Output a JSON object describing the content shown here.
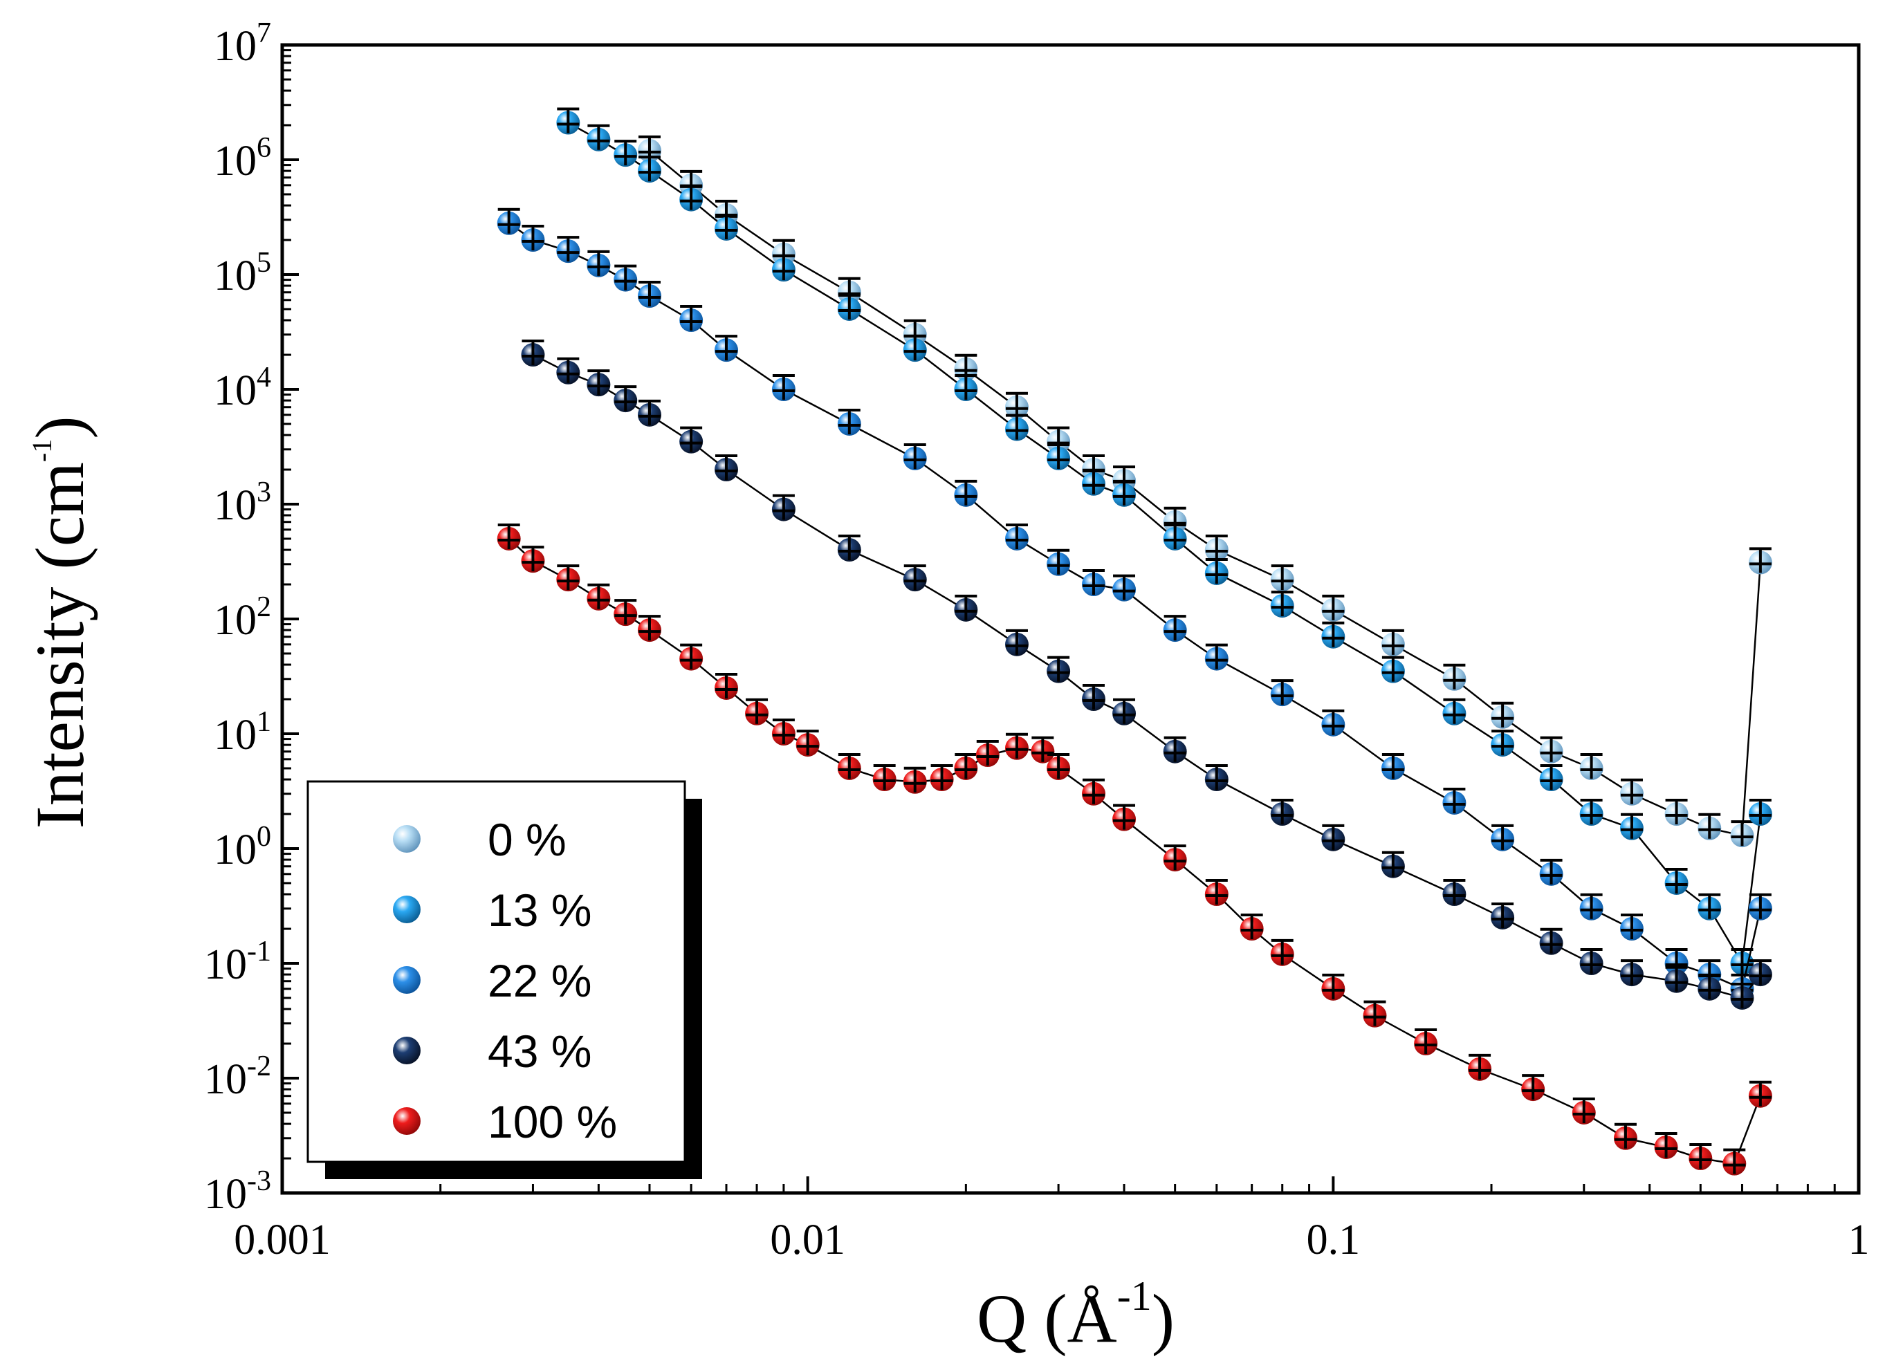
{
  "chart_data": {
    "type": "scatter",
    "xscale": "log",
    "yscale": "log",
    "xlim": [
      0.001,
      1
    ],
    "ylim": [
      0.001,
      10000000
    ],
    "x_ticks": [
      {
        "value": 0.001,
        "label": "0.001"
      },
      {
        "value": 0.01,
        "label": "0.01"
      },
      {
        "value": 0.1,
        "label": "0.1"
      },
      {
        "value": 1,
        "label": "1"
      }
    ],
    "y_ticks": [
      {
        "value": 0.001,
        "base": "10",
        "exp": "-3"
      },
      {
        "value": 0.01,
        "base": "10",
        "exp": "-2"
      },
      {
        "value": 0.1,
        "base": "10",
        "exp": "-1"
      },
      {
        "value": 1,
        "base": "10",
        "exp": "0"
      },
      {
        "value": 10,
        "base": "10",
        "exp": "1"
      },
      {
        "value": 100,
        "base": "10",
        "exp": "2"
      },
      {
        "value": 1000,
        "base": "10",
        "exp": "3"
      },
      {
        "value": 10000,
        "base": "10",
        "exp": "4"
      },
      {
        "value": 100000,
        "base": "10",
        "exp": "5"
      },
      {
        "value": 1000000,
        "base": "10",
        "exp": "6"
      },
      {
        "value": 10000000,
        "base": "10",
        "exp": "7"
      }
    ],
    "xlabel": {
      "main": "Q (Å",
      "exp": "-1",
      "close": ")"
    },
    "ylabel": {
      "main": "Intensity (cm",
      "exp": "-1",
      "close": ")"
    },
    "legend_position": "bottom-left",
    "series": [
      {
        "name": "0 %",
        "color": "#b8def5",
        "dark": "#5a8fb8",
        "points": [
          [
            0.005,
            1200000
          ],
          [
            0.006,
            600000
          ],
          [
            0.007,
            330000
          ],
          [
            0.009,
            150000
          ],
          [
            0.012,
            70000
          ],
          [
            0.016,
            30000
          ],
          [
            0.02,
            15000
          ],
          [
            0.025,
            7000
          ],
          [
            0.03,
            3500
          ],
          [
            0.035,
            2000
          ],
          [
            0.04,
            1600
          ],
          [
            0.05,
            700
          ],
          [
            0.06,
            400
          ],
          [
            0.08,
            220
          ],
          [
            0.1,
            120
          ],
          [
            0.13,
            60
          ],
          [
            0.17,
            30
          ],
          [
            0.21,
            14
          ],
          [
            0.26,
            7
          ],
          [
            0.31,
            5
          ],
          [
            0.37,
            3
          ],
          [
            0.45,
            2
          ],
          [
            0.52,
            1.5
          ],
          [
            0.6,
            1.3
          ],
          [
            0.65,
            310
          ]
        ]
      },
      {
        "name": "13 %",
        "color": "#2aa8f2",
        "dark": "#08588c",
        "points": [
          [
            0.0035,
            2100000
          ],
          [
            0.004,
            1500000
          ],
          [
            0.0045,
            1100000
          ],
          [
            0.005,
            800000
          ],
          [
            0.006,
            450000
          ],
          [
            0.007,
            250000
          ],
          [
            0.009,
            110000
          ],
          [
            0.012,
            50000
          ],
          [
            0.016,
            22000
          ],
          [
            0.02,
            10000
          ],
          [
            0.025,
            4500
          ],
          [
            0.03,
            2500
          ],
          [
            0.035,
            1500
          ],
          [
            0.04,
            1200
          ],
          [
            0.05,
            500
          ],
          [
            0.06,
            250
          ],
          [
            0.08,
            130
          ],
          [
            0.1,
            70
          ],
          [
            0.13,
            35
          ],
          [
            0.17,
            15
          ],
          [
            0.21,
            8
          ],
          [
            0.26,
            4
          ],
          [
            0.31,
            2
          ],
          [
            0.37,
            1.5
          ],
          [
            0.45,
            0.5
          ],
          [
            0.52,
            0.3
          ],
          [
            0.6,
            0.1
          ],
          [
            0.65,
            2
          ]
        ]
      },
      {
        "name": "22 %",
        "color": "#2c8fe8",
        "dark": "#0a4f94",
        "points": [
          [
            0.0027,
            280000
          ],
          [
            0.003,
            200000
          ],
          [
            0.0035,
            160000
          ],
          [
            0.004,
            120000
          ],
          [
            0.0045,
            90000
          ],
          [
            0.005,
            65000
          ],
          [
            0.006,
            40000
          ],
          [
            0.007,
            22000
          ],
          [
            0.009,
            10000
          ],
          [
            0.012,
            5000
          ],
          [
            0.016,
            2500
          ],
          [
            0.02,
            1200
          ],
          [
            0.025,
            500
          ],
          [
            0.03,
            300
          ],
          [
            0.035,
            200
          ],
          [
            0.04,
            180
          ],
          [
            0.05,
            80
          ],
          [
            0.06,
            45
          ],
          [
            0.08,
            22
          ],
          [
            0.1,
            12
          ],
          [
            0.13,
            5
          ],
          [
            0.17,
            2.5
          ],
          [
            0.21,
            1.2
          ],
          [
            0.26,
            0.6
          ],
          [
            0.31,
            0.3
          ],
          [
            0.37,
            0.2
          ],
          [
            0.45,
            0.1
          ],
          [
            0.52,
            0.08
          ],
          [
            0.6,
            0.06
          ],
          [
            0.65,
            0.3
          ]
        ]
      },
      {
        "name": "43 %",
        "color": "#1d3e73",
        "dark": "#060f22",
        "points": [
          [
            0.003,
            20000
          ],
          [
            0.0035,
            14000
          ],
          [
            0.004,
            11000
          ],
          [
            0.0045,
            8000
          ],
          [
            0.005,
            6000
          ],
          [
            0.006,
            3500
          ],
          [
            0.007,
            2000
          ],
          [
            0.009,
            900
          ],
          [
            0.012,
            400
          ],
          [
            0.016,
            220
          ],
          [
            0.02,
            120
          ],
          [
            0.025,
            60
          ],
          [
            0.03,
            35
          ],
          [
            0.035,
            20
          ],
          [
            0.04,
            15
          ],
          [
            0.05,
            7
          ],
          [
            0.06,
            4
          ],
          [
            0.08,
            2
          ],
          [
            0.1,
            1.2
          ],
          [
            0.13,
            0.7
          ],
          [
            0.17,
            0.4
          ],
          [
            0.21,
            0.25
          ],
          [
            0.26,
            0.15
          ],
          [
            0.31,
            0.1
          ],
          [
            0.37,
            0.08
          ],
          [
            0.45,
            0.07
          ],
          [
            0.52,
            0.06
          ],
          [
            0.6,
            0.05
          ],
          [
            0.65,
            0.08
          ]
        ]
      },
      {
        "name": "100 %",
        "color": "#ee1c1c",
        "dark": "#8a0606",
        "points": [
          [
            0.0027,
            500
          ],
          [
            0.003,
            320
          ],
          [
            0.0035,
            220
          ],
          [
            0.004,
            150
          ],
          [
            0.0045,
            110
          ],
          [
            0.005,
            80
          ],
          [
            0.006,
            45
          ],
          [
            0.007,
            25
          ],
          [
            0.008,
            15
          ],
          [
            0.009,
            10
          ],
          [
            0.01,
            8
          ],
          [
            0.012,
            5
          ],
          [
            0.014,
            4
          ],
          [
            0.016,
            3.8
          ],
          [
            0.018,
            4
          ],
          [
            0.02,
            5
          ],
          [
            0.022,
            6.5
          ],
          [
            0.025,
            7.5
          ],
          [
            0.028,
            7
          ],
          [
            0.03,
            5
          ],
          [
            0.035,
            3
          ],
          [
            0.04,
            1.8
          ],
          [
            0.05,
            0.8
          ],
          [
            0.06,
            0.4
          ],
          [
            0.07,
            0.2
          ],
          [
            0.08,
            0.12
          ],
          [
            0.1,
            0.06
          ],
          [
            0.12,
            0.035
          ],
          [
            0.15,
            0.02
          ],
          [
            0.19,
            0.012
          ],
          [
            0.24,
            0.008
          ],
          [
            0.3,
            0.005
          ],
          [
            0.36,
            0.003
          ],
          [
            0.43,
            0.0025
          ],
          [
            0.5,
            0.002
          ],
          [
            0.58,
            0.0018
          ],
          [
            0.65,
            0.007
          ]
        ]
      }
    ]
  }
}
